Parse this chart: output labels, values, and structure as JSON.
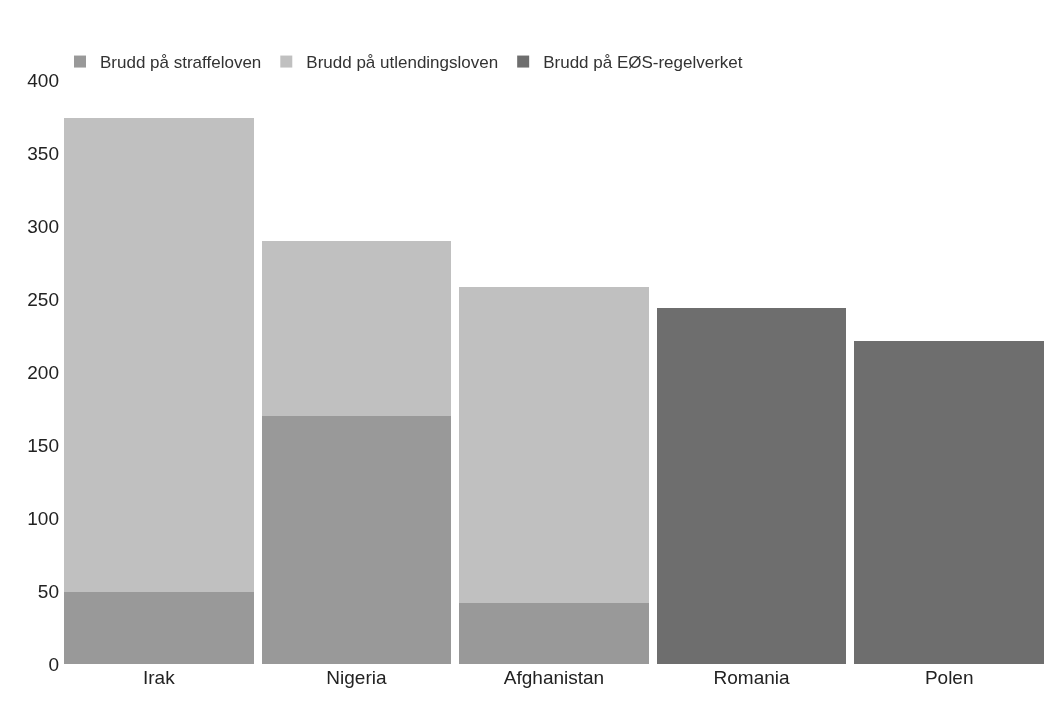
{
  "chart_data": {
    "type": "bar",
    "stacked": true,
    "categories": [
      "Irak",
      "Nigeria",
      "Afghanistan",
      "Romania",
      "Polen"
    ],
    "series": [
      {
        "name": "Brudd på straffeloven",
        "color": "#999999",
        "values": [
          49,
          170,
          42,
          null,
          null
        ]
      },
      {
        "name": "Brudd på utlendingsloven",
        "color": "#c0c0c0",
        "values": [
          325,
          120,
          216,
          null,
          null
        ]
      },
      {
        "name": "Brudd på EØS-regelverket",
        "color": "#6e6e6e",
        "values": [
          null,
          null,
          null,
          244,
          221
        ]
      }
    ],
    "ylim": [
      0,
      400
    ],
    "yticks": [
      0,
      50,
      100,
      150,
      200,
      250,
      300,
      350,
      400
    ],
    "legend": "top left"
  }
}
